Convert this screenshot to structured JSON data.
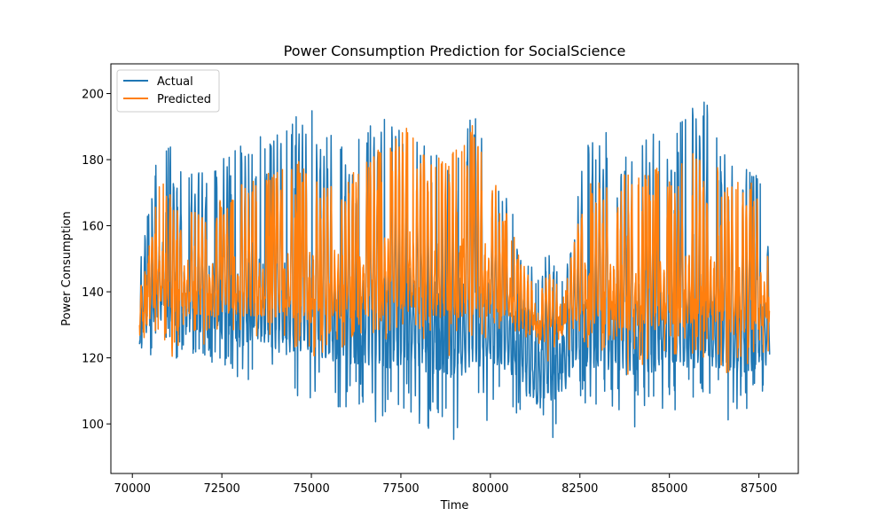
{
  "chart_data": {
    "type": "line",
    "title": "Power Consumption Prediction for SocialScience",
    "xlabel": "Time",
    "ylabel": "Power Consumption",
    "xlim": [
      69400,
      88600
    ],
    "ylim": [
      85,
      209
    ],
    "xticks": [
      70000,
      72500,
      75000,
      77500,
      80000,
      82500,
      85000,
      87500
    ],
    "xtick_labels": [
      "70000",
      "72500",
      "75000",
      "77500",
      "80000",
      "82500",
      "85000",
      "87500"
    ],
    "yticks": [
      100,
      120,
      140,
      160,
      180,
      200
    ],
    "ytick_labels": [
      "100",
      "120",
      "140",
      "160",
      "180",
      "200"
    ],
    "grid": false,
    "legend": {
      "position": "top-left"
    },
    "colors": {
      "actual": "#1f77b4",
      "predicted": "#ff7f0e"
    },
    "x_range": [
      70200,
      87800
    ],
    "series": [
      {
        "name": "Actual",
        "color": "#1f77b4",
        "envelope": {
          "x": [
            70200,
            70400,
            70700,
            71000,
            71500,
            72000,
            72500,
            73000,
            73500,
            74000,
            74500,
            75000,
            75500,
            76000,
            76500,
            77000,
            77500,
            78000,
            78500,
            78900,
            79200,
            79500,
            80000,
            80500,
            81000,
            81300,
            81600,
            82000,
            82300,
            82600,
            83000,
            83500,
            84000,
            84500,
            85000,
            85500,
            85900,
            86300,
            86700,
            87100,
            87500,
            87800
          ],
          "high": [
            150,
            162,
            190,
            186,
            176,
            176,
            180,
            185,
            187,
            187,
            193,
            195,
            188,
            182,
            190,
            193,
            190,
            185,
            182,
            178,
            183,
            197,
            176,
            168,
            150,
            145,
            152,
            146,
            158,
            180,
            194,
            182,
            181,
            188,
            185,
            196,
            203,
            188,
            178,
            178,
            177,
            160
          ],
          "low": [
            122,
            118,
            124,
            120,
            118,
            117,
            114,
            112,
            112,
            110,
            108,
            107,
            106,
            104,
            101,
            100,
            102,
            98,
            96,
            90,
            96,
            100,
            100,
            102,
            97,
            92,
            94,
            93,
            103,
            105,
            104,
            104,
            98,
            104,
            103,
            105,
            106,
            106,
            97,
            104,
            106,
            110
          ],
          "base": [
            128,
            130,
            135,
            132,
            130,
            130,
            128,
            127,
            126,
            125,
            124,
            123,
            123,
            122,
            121,
            120,
            121,
            120,
            118,
            116,
            118,
            120,
            120,
            120,
            112,
            108,
            110,
            112,
            118,
            120,
            120,
            120,
            118,
            119,
            119,
            120,
            121,
            120,
            117,
            118,
            119,
            122
          ],
          "day_period": 100
        }
      },
      {
        "name": "Predicted",
        "color": "#ff7f0e",
        "envelope": {
          "x": [
            70200,
            70400,
            70700,
            71000,
            71500,
            72000,
            72500,
            73000,
            73500,
            74000,
            74500,
            75000,
            75500,
            76000,
            76500,
            77000,
            77500,
            78000,
            78500,
            78900,
            79200,
            79500,
            80000,
            80500,
            81000,
            81300,
            81600,
            82000,
            82300,
            82600,
            83000,
            83500,
            84000,
            84500,
            85000,
            85500,
            85900,
            86300,
            86700,
            87100,
            87500,
            87800
          ],
          "high": [
            140,
            148,
            176,
            170,
            164,
            164,
            168,
            172,
            176,
            178,
            180,
            178,
            176,
            176,
            180,
            184,
            192,
            184,
            180,
            186,
            186,
            193,
            178,
            162,
            146,
            140,
            146,
            140,
            152,
            172,
            176,
            176,
            175,
            178,
            176,
            180,
            185,
            178,
            174,
            174,
            174,
            150
          ],
          "low": [
            124,
            116,
            123,
            120,
            121,
            121,
            120,
            120,
            119,
            120,
            120,
            119,
            122,
            122,
            124,
            125,
            125,
            126,
            125,
            118,
            124,
            124,
            126,
            126,
            124,
            122,
            118,
            120,
            123,
            120,
            123,
            118,
            112,
            120,
            120,
            120,
            120,
            120,
            114,
            118,
            118,
            122
          ],
          "base": [
            130,
            132,
            140,
            138,
            136,
            136,
            135,
            135,
            134,
            134,
            134,
            134,
            134,
            134,
            135,
            136,
            137,
            137,
            136,
            134,
            135,
            136,
            136,
            134,
            130,
            128,
            128,
            129,
            132,
            134,
            134,
            133,
            131,
            132,
            132,
            133,
            134,
            133,
            130,
            131,
            131,
            132
          ],
          "day_period": 100
        }
      }
    ]
  }
}
